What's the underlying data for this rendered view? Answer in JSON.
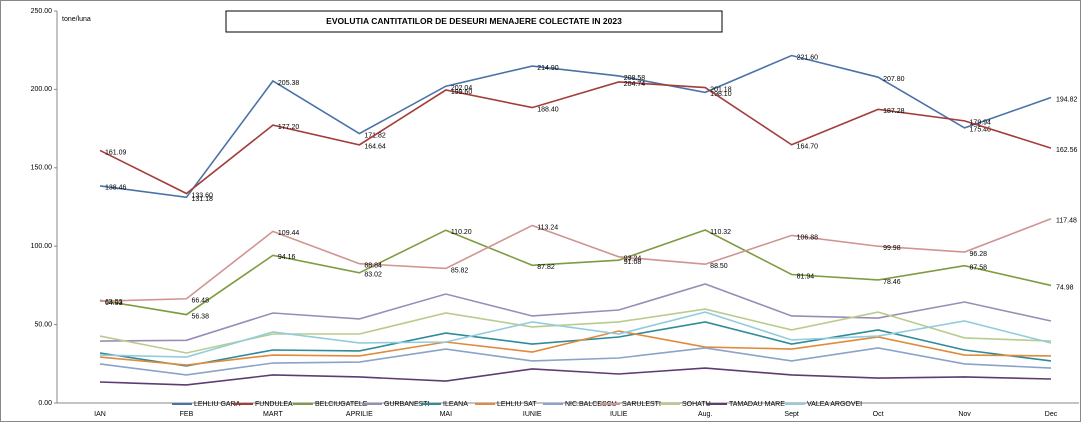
{
  "chart_data": {
    "type": "line",
    "title": "EVOLUTIA CANTITATILOR DE  DESEURI MENAJERE COLECTATE IN 2023",
    "y_label": "tone/luna",
    "categories": [
      "IAN",
      "FEB",
      "MART",
      "APRILIE",
      "MAI",
      "IUNIE",
      "IULIE",
      "Aug.",
      "Sept",
      "Oct",
      "Nov",
      "Dec"
    ],
    "ylim": [
      0,
      250
    ],
    "yticks": [
      {
        "value": 0,
        "label": "0.00"
      },
      {
        "value": 50,
        "label": "50.00"
      },
      {
        "value": 100,
        "label": "100.00"
      },
      {
        "value": 150,
        "label": "150.00"
      },
      {
        "value": 200,
        "label": "200.00"
      },
      {
        "value": 250,
        "label": "250.00"
      }
    ],
    "legend": "bottom",
    "series": [
      {
        "name": "LEHLIU GARA",
        "color": "#4a72a8",
        "values": [
          138.46,
          131.18,
          205.38,
          171.82,
          202.04,
          214.9,
          208.58,
          198.1,
          221.6,
          207.8,
          175.46,
          194.82
        ],
        "value_labels": [
          "138.46",
          "131.18",
          "205.38",
          "171.82",
          "202.04",
          "214.90",
          "208.58",
          "198.10",
          "221.60",
          "207.80",
          "175.46",
          "194.82"
        ]
      },
      {
        "name": "FUNDULEA",
        "color": "#a33d3a",
        "values": [
          161.09,
          133.6,
          177.2,
          164.64,
          199.6,
          188.4,
          204.74,
          201.18,
          164.7,
          187.28,
          179.94,
          162.56
        ],
        "value_labels": [
          "161.09",
          "133.60",
          "177.20",
          "164.64",
          "199.60",
          "188.40",
          "204.74",
          "201.18",
          "164.70",
          "187.28",
          "179.94",
          "162.56"
        ]
      },
      {
        "name": "BELCIUGATELE",
        "color": "#7f9b41",
        "values": [
          65.53,
          56.38,
          94.16,
          83.02,
          110.2,
          87.82,
          91.08,
          110.32,
          81.94,
          78.46,
          87.58,
          74.98
        ],
        "value_labels": [
          "65.53",
          "56.38",
          "94.16",
          "83.02",
          "110.20",
          "87.82",
          "91.08",
          "110.32",
          "81.94",
          "78.46",
          "87.58",
          "74.98"
        ]
      },
      {
        "name": "GURBANESTI",
        "color": "#9a8db5",
        "values": [
          39.5,
          40,
          57.4,
          53.6,
          69.5,
          55.5,
          59.3,
          75.9,
          55.5,
          54.2,
          64.4,
          52.3
        ]
      },
      {
        "name": "ILEANA",
        "color": "#2f8b98",
        "values": [
          31.9,
          23.6,
          33.8,
          33.2,
          44.6,
          37.6,
          42.1,
          51.7,
          37.6,
          46.6,
          33.8,
          26.8
        ]
      },
      {
        "name": "LEHLIU SAT",
        "color": "#e08a3c",
        "values": [
          29.3,
          24.2,
          30.6,
          30,
          38.9,
          32.5,
          45.9,
          35.7,
          34.4,
          42.1,
          30.6,
          30
        ]
      },
      {
        "name": "NIC.BALCESCU",
        "color": "#8aa3c8",
        "values": [
          24.9,
          17.9,
          25.5,
          26.1,
          34.4,
          26.8,
          28.7,
          35.1,
          26.8,
          35.1,
          24.9,
          22.3
        ]
      },
      {
        "name": "SARULESTI",
        "color": "#d09491",
        "values": [
          64.93,
          66.48,
          109.44,
          88.84,
          85.82,
          113.24,
          93.24,
          88.5,
          106.88,
          99.98,
          96.28,
          117.48
        ],
        "value_labels": [
          "64.93",
          "66.48",
          "109.44",
          "88.84",
          "85.82",
          "113.24",
          "93.24",
          "88.50",
          "106.88",
          "99.98",
          "96.28",
          "117.48"
        ]
      },
      {
        "name": "SOHATU",
        "color": "#b9cc8e",
        "values": [
          42.7,
          31.9,
          44,
          44,
          57.4,
          48.5,
          51.7,
          59.9,
          46.6,
          58,
          41.5,
          39.5
        ]
      },
      {
        "name": "TAMADAU MARE",
        "color": "#5e3c72",
        "values": [
          13.4,
          11.5,
          17.9,
          16.6,
          14,
          21.7,
          18.5,
          22.3,
          17.9,
          15.9,
          16.6,
          15.3
        ]
      },
      {
        "name": "VALEA ARGOVEI",
        "color": "#93cddd",
        "values": [
          30.6,
          29.3,
          45.3,
          38.3,
          38.9,
          51.7,
          44,
          58,
          40.2,
          42.7,
          52.3,
          38.3
        ]
      }
    ]
  }
}
